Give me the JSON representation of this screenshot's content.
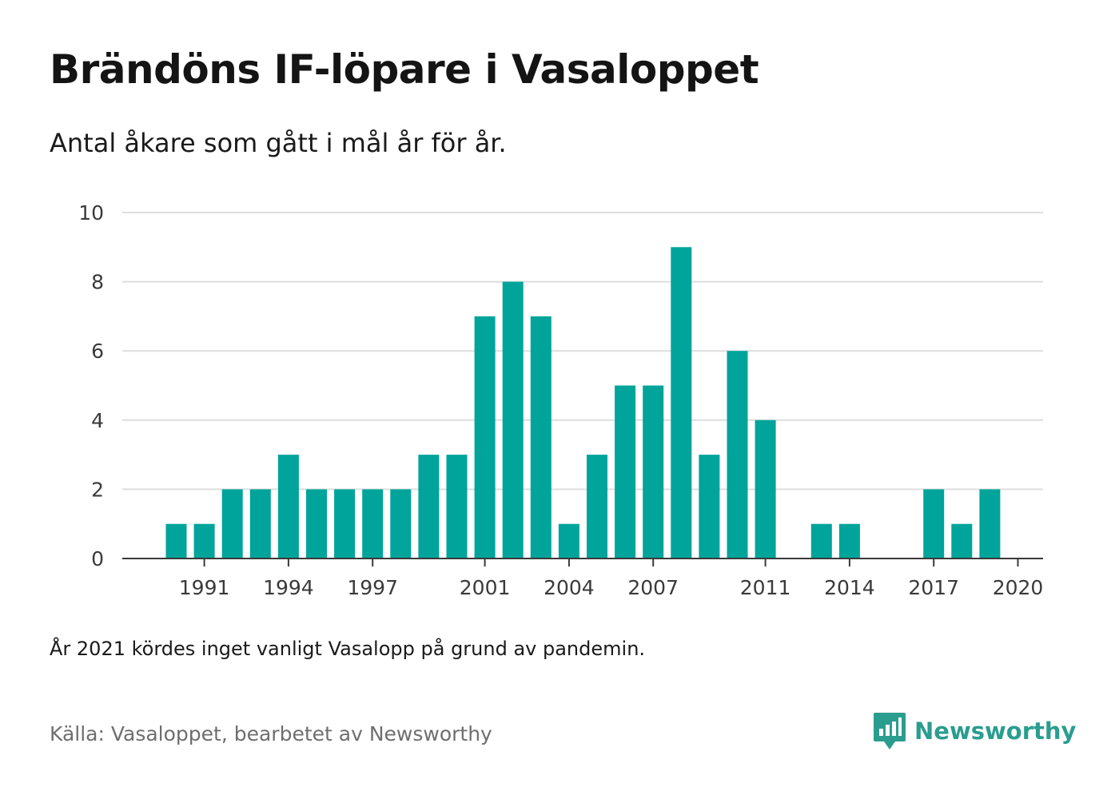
{
  "title": "Brändöns IF-löpare i Vasaloppet",
  "subtitle": "Antal åkare som gått i mål år för år.",
  "note": "År 2021 kördes inget vanligt Vasalopp på grund av pandemin.",
  "source": "Källa: Vasaloppet, bearbetet av Newsworthy",
  "brand": {
    "name": "Newsworthy",
    "icon": "newsworthy-logo-icon",
    "color": "#2a9d8f"
  },
  "chart_data": {
    "type": "bar",
    "x": [
      1990,
      1991,
      1992,
      1993,
      1994,
      1995,
      1996,
      1997,
      1998,
      1999,
      2000,
      2001,
      2002,
      2003,
      2004,
      2005,
      2006,
      2007,
      2008,
      2009,
      2010,
      2011,
      2012,
      2013,
      2014,
      2015,
      2016,
      2017,
      2018,
      2019,
      2020
    ],
    "values": [
      1,
      1,
      2,
      2,
      3,
      2,
      2,
      2,
      2,
      3,
      3,
      7,
      8,
      7,
      1,
      3,
      5,
      5,
      9,
      3,
      6,
      4,
      0,
      1,
      1,
      0,
      0,
      2,
      1,
      2,
      0
    ],
    "xticks": [
      1991,
      1994,
      1997,
      2001,
      2004,
      2007,
      2011,
      2014,
      2017,
      2020
    ],
    "xtick_labels": [
      "1991",
      "1994",
      "1997",
      "2001",
      "2004",
      "2007",
      "2011",
      "2014",
      "2017",
      "2020"
    ],
    "yticks": [
      0,
      2,
      4,
      6,
      8,
      10
    ],
    "ytick_labels": [
      "0",
      "2",
      "4",
      "6",
      "8",
      "10"
    ],
    "ylim": [
      0,
      10
    ],
    "xlabel": "",
    "ylabel": "",
    "grid": true,
    "bar_color": "#00a49a"
  }
}
